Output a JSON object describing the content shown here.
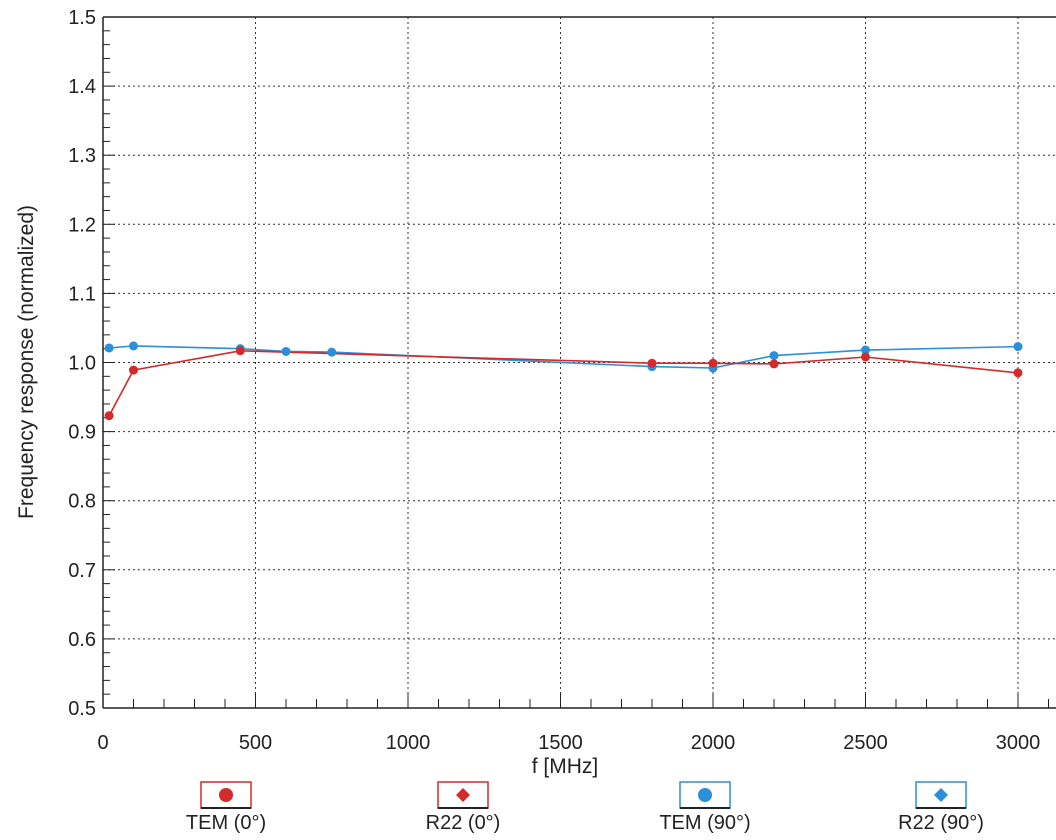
{
  "chart_data": {
    "type": "line",
    "xlabel": "f [MHz]",
    "ylabel": "Frequency response (normalized)",
    "xlim": [
      0,
      3100
    ],
    "ylim": [
      0.5,
      1.5
    ],
    "x_ticks": [
      0,
      500,
      1000,
      1500,
      2000,
      2500,
      3000
    ],
    "y_ticks": [
      0.5,
      0.6,
      0.7,
      0.8,
      0.9,
      1.0,
      1.1,
      1.2,
      1.3,
      1.4,
      1.5
    ],
    "x_tick_labels": [
      "0",
      "500",
      "1000",
      "1500",
      "2000",
      "2500",
      "3000"
    ],
    "y_tick_labels": [
      "0.5",
      "0.6",
      "0.7",
      "0.8",
      "0.9",
      "1.0",
      "1.1",
      "1.2",
      "1.3",
      "1.4",
      "1.5"
    ],
    "grid": true,
    "legend_position": "bottom",
    "series": [
      {
        "name": "TEM (0°)",
        "color": "#d42a2a",
        "marker": "circle",
        "points": [
          [
            20,
            0.923
          ],
          [
            100,
            0.989
          ],
          [
            450,
            1.017
          ],
          [
            1800,
            0.999
          ],
          [
            2000,
            0.999
          ],
          [
            2200,
            0.998
          ],
          [
            2500,
            1.008
          ],
          [
            3000,
            0.985
          ]
        ]
      },
      {
        "name": "R22 (0°)",
        "color": "#d42a2a",
        "marker": "diamond",
        "points": [
          [
            20,
            0.923
          ],
          [
            100,
            0.989
          ],
          [
            450,
            1.017
          ],
          [
            1800,
            0.999
          ],
          [
            2000,
            0.999
          ],
          [
            2200,
            0.998
          ],
          [
            2500,
            1.008
          ],
          [
            3000,
            0.985
          ]
        ]
      },
      {
        "name": "TEM (90°)",
        "color": "#2b8fd9",
        "marker": "circle",
        "points": [
          [
            20,
            1.021
          ],
          [
            100,
            1.024
          ],
          [
            450,
            1.02
          ],
          [
            600,
            1.016
          ],
          [
            750,
            1.015
          ],
          [
            1800,
            0.994
          ],
          [
            2000,
            0.992
          ],
          [
            2200,
            1.01
          ],
          [
            2500,
            1.018
          ],
          [
            3000,
            1.023
          ]
        ]
      },
      {
        "name": "R22 (90°)",
        "color": "#2b8fd9",
        "marker": "diamond",
        "points": [
          [
            20,
            1.021
          ],
          [
            100,
            1.024
          ],
          [
            450,
            1.02
          ],
          [
            600,
            1.016
          ],
          [
            750,
            1.015
          ],
          [
            1800,
            0.994
          ],
          [
            2000,
            0.992
          ],
          [
            2200,
            1.01
          ],
          [
            2500,
            1.018
          ],
          [
            3000,
            1.023
          ]
        ]
      }
    ]
  }
}
